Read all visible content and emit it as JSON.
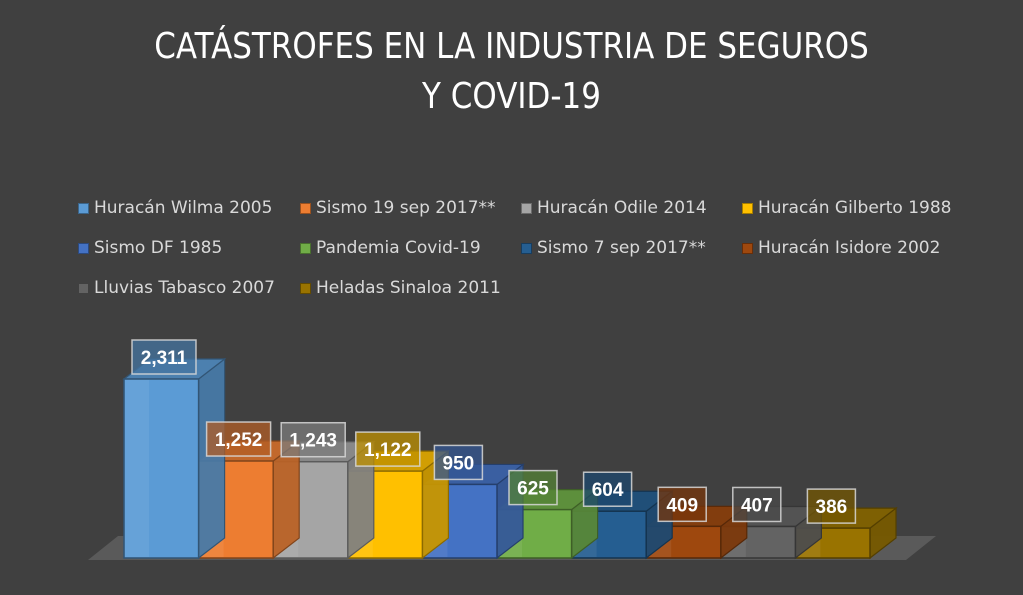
{
  "chart_data": {
    "type": "bar",
    "style": "3d-column",
    "title": "CATÁSTROFES EN LA INDUSTRIA DE SEGUROS Y COVID-19",
    "title_lines": [
      "CATÁSTROFES EN LA INDUSTRIA DE SEGUROS",
      "Y COVID-19"
    ],
    "xlabel": "",
    "ylabel": "",
    "ylim": [
      0,
      2311
    ],
    "grid": false,
    "legend_position": "top",
    "series": [
      {
        "name": "Huracán Wilma 2005",
        "value": 2311,
        "label": "2,311",
        "color": "#5b9bd5"
      },
      {
        "name": "Sismo 19 sep 2017**",
        "value": 1252,
        "label": "1,252",
        "color": "#ed7d31"
      },
      {
        "name": "Huracán Odile 2014",
        "value": 1243,
        "label": "1,243",
        "color": "#a5a5a5"
      },
      {
        "name": "Huracán Gilberto 1988",
        "value": 1122,
        "label": "1,122",
        "color": "#ffc000"
      },
      {
        "name": "Sismo DF 1985",
        "value": 950,
        "label": "950",
        "color": "#4472c4"
      },
      {
        "name": "Pandemia Covid-19",
        "value": 625,
        "label": "625",
        "color": "#70ad47"
      },
      {
        "name": "Sismo 7 sep 2017**",
        "value": 604,
        "label": "604",
        "color": "#255e91"
      },
      {
        "name": "Huracán Isidore 2002",
        "value": 409,
        "label": "409",
        "color": "#9e480e"
      },
      {
        "name": "Lluvias Tabasco 2007",
        "value": 407,
        "label": "407",
        "color": "#636363"
      },
      {
        "name": "Heladas Sinaloa 2011",
        "value": 386,
        "label": "386",
        "color": "#997300"
      }
    ]
  }
}
